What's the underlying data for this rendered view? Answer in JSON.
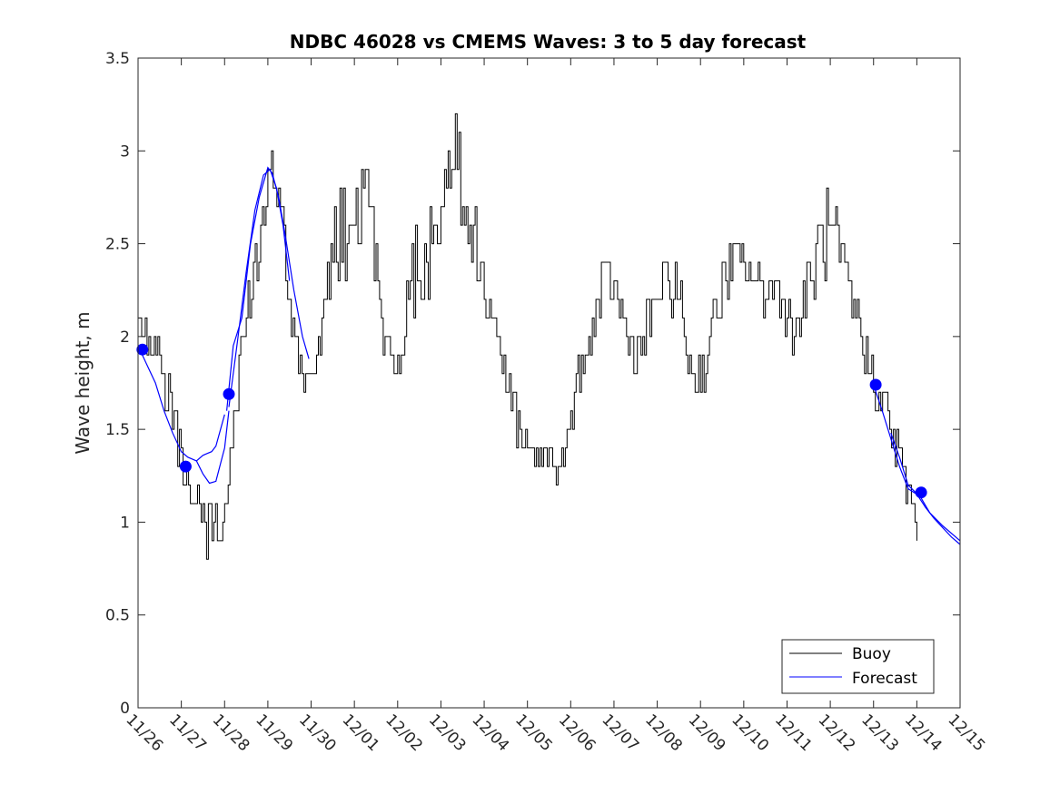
{
  "chart_data": {
    "type": "line",
    "title": "NDBC 46028 vs CMEMS Waves: 3 to 5 day forecast",
    "xlabel": "",
    "ylabel": "Wave height, m",
    "xlim": [
      0,
      19
    ],
    "ylim": [
      0,
      3.5
    ],
    "yticks": [
      0,
      0.5,
      1,
      1.5,
      2,
      2.5,
      3,
      3.5
    ],
    "ytick_labels": [
      "0",
      "0.5",
      "1",
      "1.5",
      "2",
      "2.5",
      "3",
      "3.5"
    ],
    "xtick_values": [
      0,
      1,
      2,
      3,
      4,
      5,
      6,
      7,
      8,
      9,
      10,
      11,
      12,
      13,
      14,
      15,
      16,
      17,
      18,
      19
    ],
    "xtick_labels": [
      "11/26",
      "11/27",
      "11/28",
      "11/29",
      "11/30",
      "12/01",
      "12/02",
      "12/03",
      "12/04",
      "12/05",
      "12/06",
      "12/07",
      "12/08",
      "12/09",
      "12/10",
      "12/11",
      "12/12",
      "12/13",
      "12/14",
      "12/15"
    ],
    "legend": {
      "position": "bottom-right",
      "entries": [
        "Buoy",
        "Forecast"
      ]
    },
    "colors": {
      "buoy": "#000000",
      "forecast": "#0000ff",
      "markers": "#0000ff"
    },
    "series": [
      {
        "name": "Buoy",
        "color": "#000000",
        "anchors": [
          [
            0.0,
            2.2
          ],
          [
            0.1,
            2.1
          ],
          [
            0.2,
            1.95
          ],
          [
            0.35,
            2.0
          ],
          [
            0.5,
            1.85
          ],
          [
            0.7,
            1.7
          ],
          [
            0.9,
            1.45
          ],
          [
            1.05,
            1.3
          ],
          [
            1.2,
            1.2
          ],
          [
            1.35,
            1.05
          ],
          [
            1.5,
            0.95
          ],
          [
            1.7,
            1.0
          ],
          [
            1.9,
            0.95
          ],
          [
            2.0,
            1.05
          ],
          [
            2.1,
            1.3
          ],
          [
            2.25,
            1.65
          ],
          [
            2.4,
            1.95
          ],
          [
            2.6,
            2.25
          ],
          [
            2.8,
            2.5
          ],
          [
            2.95,
            2.8
          ],
          [
            3.05,
            2.9
          ],
          [
            3.2,
            2.75
          ],
          [
            3.35,
            2.55
          ],
          [
            3.55,
            2.0
          ],
          [
            3.7,
            1.85
          ],
          [
            3.85,
            1.65
          ],
          [
            4.0,
            1.7
          ],
          [
            4.15,
            1.95
          ],
          [
            4.3,
            2.3
          ],
          [
            4.5,
            2.45
          ],
          [
            4.7,
            2.6
          ],
          [
            4.9,
            2.6
          ],
          [
            5.1,
            2.55
          ],
          [
            5.3,
            2.7
          ],
          [
            5.5,
            2.4
          ],
          [
            5.65,
            2.0
          ],
          [
            5.8,
            1.85
          ],
          [
            6.0,
            1.9
          ],
          [
            6.15,
            2.0
          ],
          [
            6.3,
            2.3
          ],
          [
            6.5,
            2.45
          ],
          [
            6.7,
            2.4
          ],
          [
            6.9,
            2.6
          ],
          [
            7.1,
            2.85
          ],
          [
            7.3,
            3.0
          ],
          [
            7.5,
            2.85
          ],
          [
            7.7,
            2.55
          ],
          [
            7.85,
            2.4
          ],
          [
            8.05,
            2.2
          ],
          [
            8.25,
            2.1
          ],
          [
            8.45,
            1.8
          ],
          [
            8.7,
            1.6
          ],
          [
            8.9,
            1.45
          ],
          [
            9.1,
            1.35
          ],
          [
            9.3,
            1.35
          ],
          [
            9.5,
            1.35
          ],
          [
            9.7,
            1.25
          ],
          [
            9.9,
            1.45
          ],
          [
            10.1,
            1.7
          ],
          [
            10.3,
            1.85
          ],
          [
            10.5,
            2.05
          ],
          [
            10.7,
            2.25
          ],
          [
            10.9,
            2.3
          ],
          [
            11.1,
            2.2
          ],
          [
            11.3,
            2.0
          ],
          [
            11.5,
            1.9
          ],
          [
            11.7,
            2.0
          ],
          [
            11.9,
            2.15
          ],
          [
            12.1,
            2.3
          ],
          [
            12.3,
            2.3
          ],
          [
            12.5,
            2.2
          ],
          [
            12.7,
            1.9
          ],
          [
            12.9,
            1.75
          ],
          [
            13.1,
            1.85
          ],
          [
            13.3,
            2.1
          ],
          [
            13.5,
            2.25
          ],
          [
            13.7,
            2.4
          ],
          [
            13.9,
            2.4
          ],
          [
            14.1,
            2.35
          ],
          [
            14.3,
            2.3
          ],
          [
            14.5,
            2.25
          ],
          [
            14.7,
            2.3
          ],
          [
            14.9,
            2.2
          ],
          [
            15.1,
            2.0
          ],
          [
            15.3,
            2.1
          ],
          [
            15.5,
            2.3
          ],
          [
            15.7,
            2.45
          ],
          [
            15.9,
            2.55
          ],
          [
            16.1,
            2.5
          ],
          [
            16.3,
            2.3
          ],
          [
            16.5,
            2.15
          ],
          [
            16.7,
            2.05
          ],
          [
            16.9,
            1.85
          ],
          [
            17.1,
            1.7
          ],
          [
            17.3,
            1.6
          ],
          [
            17.5,
            1.4
          ],
          [
            17.7,
            1.25
          ],
          [
            17.85,
            1.1
          ],
          [
            18.0,
            1.05
          ]
        ]
      },
      {
        "name": "Forecast",
        "color": "#0000ff",
        "segments": [
          [
            [
              0.0,
              1.95
            ],
            [
              0.2,
              1.85
            ],
            [
              0.4,
              1.75
            ],
            [
              0.6,
              1.6
            ],
            [
              0.8,
              1.48
            ],
            [
              1.0,
              1.38
            ],
            [
              1.15,
              1.35
            ],
            [
              1.35,
              1.33
            ],
            [
              1.5,
              1.36
            ],
            [
              1.6,
              1.37
            ],
            [
              1.7,
              1.38
            ],
            [
              1.8,
              1.41
            ],
            [
              2.0,
              1.58
            ]
          ],
          [
            [
              1.35,
              1.33
            ],
            [
              1.5,
              1.26
            ],
            [
              1.65,
              1.21
            ],
            [
              1.8,
              1.22
            ],
            [
              2.0,
              1.4
            ],
            [
              2.1,
              1.6
            ]
          ],
          [
            [
              2.05,
              1.6
            ],
            [
              2.2,
              1.95
            ],
            [
              2.4,
              2.1
            ],
            [
              2.6,
              2.5
            ],
            [
              2.8,
              2.75
            ],
            [
              3.0,
              2.91
            ],
            [
              3.1,
              2.88
            ],
            [
              3.25,
              2.75
            ],
            [
              3.4,
              2.55
            ],
            [
              3.6,
              2.25
            ],
            [
              3.8,
              2.0
            ],
            [
              3.95,
              1.88
            ]
          ],
          [
            [
              2.1,
              1.62
            ],
            [
              2.3,
              1.98
            ],
            [
              2.5,
              2.35
            ],
            [
              2.7,
              2.68
            ],
            [
              2.9,
              2.87
            ],
            [
              3.05,
              2.9
            ],
            [
              3.2,
              2.8
            ],
            [
              3.35,
              2.6
            ],
            [
              3.5,
              2.3
            ]
          ],
          [
            [
              17.0,
              1.74
            ],
            [
              17.2,
              1.6
            ],
            [
              17.4,
              1.45
            ],
            [
              17.6,
              1.3
            ],
            [
              17.8,
              1.18
            ],
            [
              18.0,
              1.15
            ],
            [
              18.2,
              1.08
            ],
            [
              18.4,
              1.02
            ],
            [
              18.6,
              0.97
            ],
            [
              18.8,
              0.92
            ],
            [
              19.0,
              0.88
            ]
          ],
          [
            [
              17.4,
              1.48
            ],
            [
              17.6,
              1.35
            ],
            [
              17.8,
              1.2
            ],
            [
              18.1,
              1.13
            ],
            [
              18.3,
              1.05
            ],
            [
              18.6,
              0.98
            ],
            [
              19.0,
              0.9
            ]
          ]
        ]
      }
    ],
    "markers": [
      [
        0.1,
        1.93
      ],
      [
        1.1,
        1.3
      ],
      [
        2.1,
        1.69
      ],
      [
        17.05,
        1.74
      ],
      [
        18.1,
        1.16
      ]
    ]
  }
}
